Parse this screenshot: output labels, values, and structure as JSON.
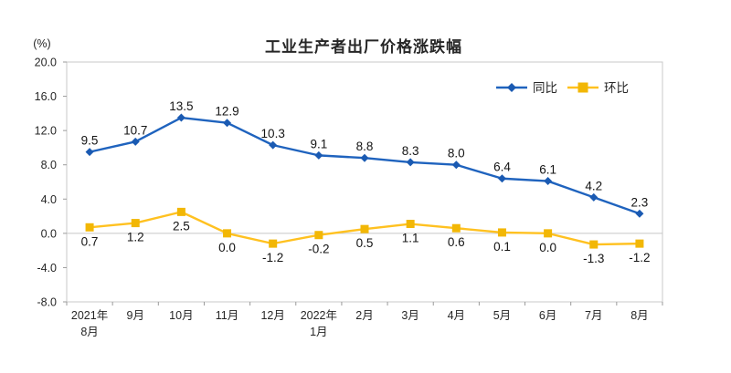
{
  "page": {
    "background": "#ffffff"
  },
  "chart_data": {
    "type": "line",
    "title": "工业生产者出厂价格涨跌幅",
    "unit_label": "(%)",
    "categories": [
      [
        "2021年",
        "8月"
      ],
      [
        "9月"
      ],
      [
        "10月"
      ],
      [
        "11月"
      ],
      [
        "12月"
      ],
      [
        "2022年",
        "1月"
      ],
      [
        "2月"
      ],
      [
        "3月"
      ],
      [
        "4月"
      ],
      [
        "5月"
      ],
      [
        "6月"
      ],
      [
        "7月"
      ],
      [
        "8月"
      ]
    ],
    "series": [
      {
        "name": "同比",
        "marker": "diamond",
        "color": "#1f63be",
        "marker_color": "#1a5ab2",
        "label_position": "above",
        "values": [
          9.5,
          10.7,
          13.5,
          12.9,
          10.3,
          9.1,
          8.8,
          8.3,
          8.0,
          6.4,
          6.1,
          4.2,
          2.3
        ]
      },
      {
        "name": "环比",
        "marker": "square",
        "color": "#ffc120",
        "marker_color": "#f2b705",
        "label_position": "below",
        "values": [
          0.7,
          1.2,
          2.5,
          0.0,
          -1.2,
          -0.2,
          0.5,
          1.1,
          0.6,
          0.1,
          0.0,
          -1.3,
          -1.2
        ]
      }
    ],
    "y_axis": {
      "min": -8,
      "max": 20,
      "step": 4,
      "tick_labels": [
        "20.0",
        "16.0",
        "12.0",
        "8.0",
        "4.0",
        "0.0",
        "-4.0",
        "-8.0"
      ]
    },
    "grid": "zero-line-only",
    "legend_position": "top-right",
    "axis_color": "#c8c8c8",
    "tick_color": "#9a9a9a"
  }
}
